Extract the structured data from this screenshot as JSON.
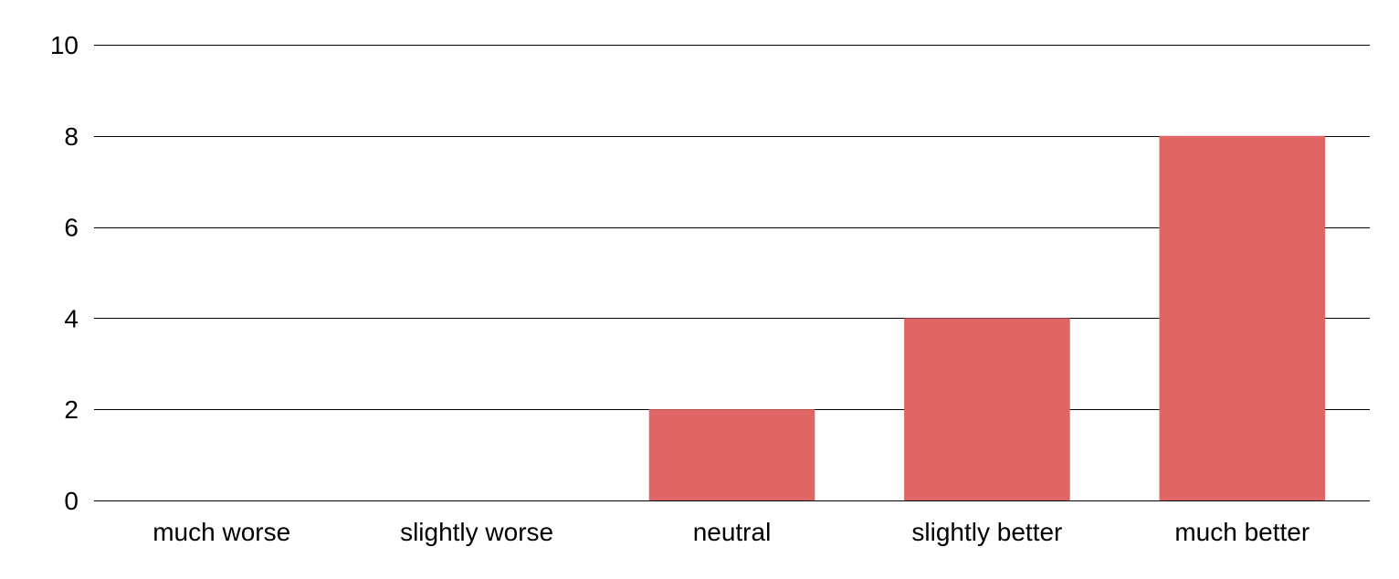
{
  "chart_data": {
    "type": "bar",
    "categories": [
      "much worse",
      "slightly worse",
      "neutral",
      "slightly better",
      "much better"
    ],
    "values": [
      0,
      0,
      2,
      4,
      8
    ],
    "title": "",
    "xlabel": "",
    "ylabel": "",
    "ylim": [
      0,
      10
    ],
    "yticks": [
      "0",
      "2",
      "4",
      "6",
      "8",
      "10"
    ],
    "grid": true,
    "legend": "none",
    "colors": {
      "bar": "#e06666",
      "gridline": "#000000",
      "text": "#000000"
    }
  }
}
